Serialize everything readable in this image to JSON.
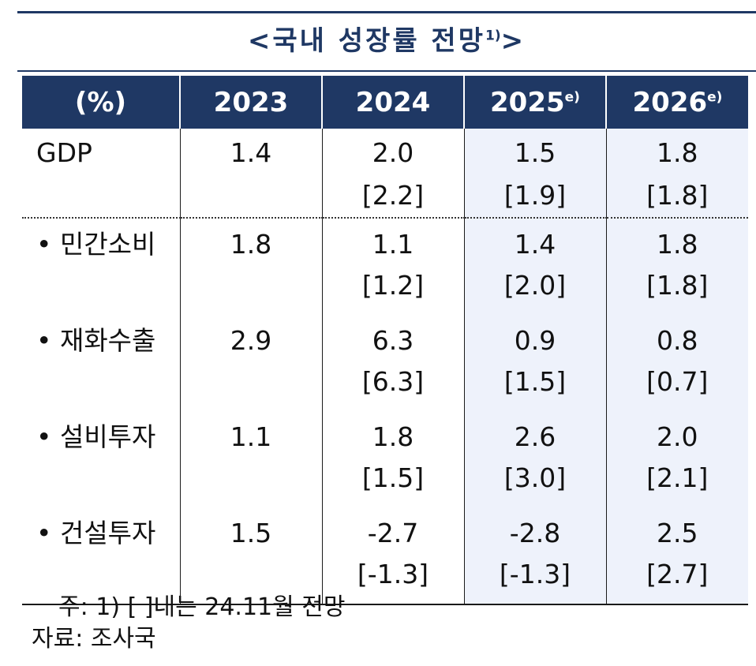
{
  "title": {
    "text": "<국내 성장률 전망",
    "sup": "1)",
    "close": ">"
  },
  "header": {
    "unit": "(%)",
    "years": [
      {
        "label": "2023",
        "sup": ""
      },
      {
        "label": "2024",
        "sup": ""
      },
      {
        "label": "2025",
        "sup": "e)"
      },
      {
        "label": "2026",
        "sup": "e)"
      }
    ]
  },
  "rows": [
    {
      "label": "GDP",
      "values": [
        "1.4",
        "2.0",
        "1.5",
        "1.8"
      ],
      "prev": [
        "",
        "[2.2]",
        "[1.9]",
        "[1.8]"
      ]
    },
    {
      "label": "• 민간소비",
      "values": [
        "1.8",
        "1.1",
        "1.4",
        "1.8"
      ],
      "prev": [
        "",
        "[1.2]",
        "[2.0]",
        "[1.8]"
      ]
    },
    {
      "label": "• 재화수출",
      "values": [
        "2.9",
        "6.3",
        "0.9",
        "0.8"
      ],
      "prev": [
        "",
        "[6.3]",
        "[1.5]",
        "[0.7]"
      ]
    },
    {
      "label": "• 설비투자",
      "values": [
        "1.1",
        "1.8",
        "2.6",
        "2.0"
      ],
      "prev": [
        "",
        "[1.5]",
        "[3.0]",
        "[2.1]"
      ]
    },
    {
      "label": "• 건설투자",
      "values": [
        "1.5",
        "-2.7",
        "-2.8",
        "2.5"
      ],
      "prev": [
        "",
        "[-1.3]",
        "[-1.3]",
        "[2.7]"
      ]
    }
  ],
  "note": "주: 1) [ ]내는 24.11월 전망",
  "source": "자료: 조사국",
  "colors": {
    "header_bg": "#1f3864",
    "forecast_bg": "#eef2fb"
  }
}
